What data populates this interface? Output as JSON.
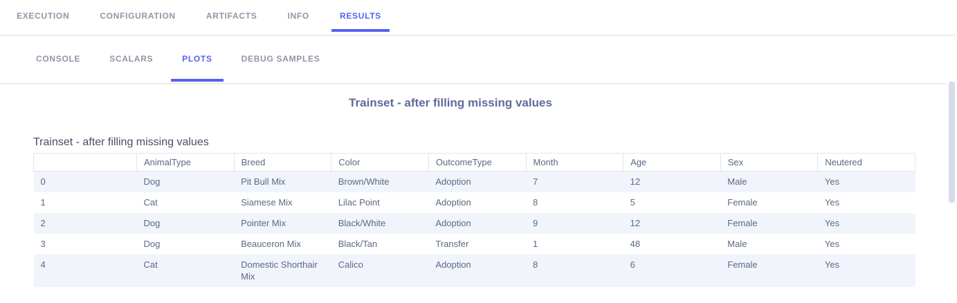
{
  "tabs_primary": {
    "items": [
      {
        "label": "EXECUTION",
        "active": false
      },
      {
        "label": "CONFIGURATION",
        "active": false
      },
      {
        "label": "ARTIFACTS",
        "active": false
      },
      {
        "label": "INFO",
        "active": false
      },
      {
        "label": "RESULTS",
        "active": true
      }
    ]
  },
  "tabs_secondary": {
    "items": [
      {
        "label": "CONSOLE",
        "active": false
      },
      {
        "label": "SCALARS",
        "active": false
      },
      {
        "label": "PLOTS",
        "active": true
      },
      {
        "label": "DEBUG SAMPLES",
        "active": false
      }
    ]
  },
  "plot": {
    "title": "Trainset - after filling missing values"
  },
  "table": {
    "title": "Trainset - after filling missing values",
    "columns": [
      "",
      "AnimalType",
      "Breed",
      "Color",
      "OutcomeType",
      "Month",
      "Age",
      "Sex",
      "Neutered"
    ],
    "rows": [
      [
        "0",
        "Dog",
        "Pit Bull Mix",
        "Brown/White",
        "Adoption",
        "7",
        "12",
        "Male",
        "Yes"
      ],
      [
        "1",
        "Cat",
        "Siamese Mix",
        "Lilac Point",
        "Adoption",
        "8",
        "5",
        "Female",
        "Yes"
      ],
      [
        "2",
        "Dog",
        "Pointer Mix",
        "Black/White",
        "Adoption",
        "9",
        "12",
        "Female",
        "Yes"
      ],
      [
        "3",
        "Dog",
        "Beauceron Mix",
        "Black/Tan",
        "Transfer",
        "1",
        "48",
        "Male",
        "Yes"
      ],
      [
        "4",
        "Cat",
        "Domestic Shorthair Mix",
        "Calico",
        "Adoption",
        "8",
        "6",
        "Female",
        "Yes"
      ]
    ]
  },
  "chart_data": {
    "type": "table",
    "title": "Trainset - after filling missing values",
    "columns": [
      "",
      "AnimalType",
      "Breed",
      "Color",
      "OutcomeType",
      "Month",
      "Age",
      "Sex",
      "Neutered"
    ],
    "rows": [
      [
        "0",
        "Dog",
        "Pit Bull Mix",
        "Brown/White",
        "Adoption",
        "7",
        "12",
        "Male",
        "Yes"
      ],
      [
        "1",
        "Cat",
        "Siamese Mix",
        "Lilac Point",
        "Adoption",
        "8",
        "5",
        "Female",
        "Yes"
      ],
      [
        "2",
        "Dog",
        "Pointer Mix",
        "Black/White",
        "Adoption",
        "9",
        "12",
        "Female",
        "Yes"
      ],
      [
        "3",
        "Dog",
        "Beauceron Mix",
        "Black/Tan",
        "Transfer",
        "1",
        "48",
        "Male",
        "Yes"
      ],
      [
        "4",
        "Cat",
        "Domestic Shorthair Mix",
        "Calico",
        "Adoption",
        "8",
        "6",
        "Female",
        "Yes"
      ]
    ]
  },
  "colors": {
    "accent": "#5661f2",
    "inactive_tab_text": "#8e96a6",
    "plot_title_text": "#5e6b9b",
    "table_title_text": "#474e60",
    "cell_text": "#5b6885",
    "row_stripe": "#f1f4fb",
    "table_border": "#e3e5ec",
    "divider": "#ebebee",
    "scrollbar_thumb": "#d8dcea"
  }
}
